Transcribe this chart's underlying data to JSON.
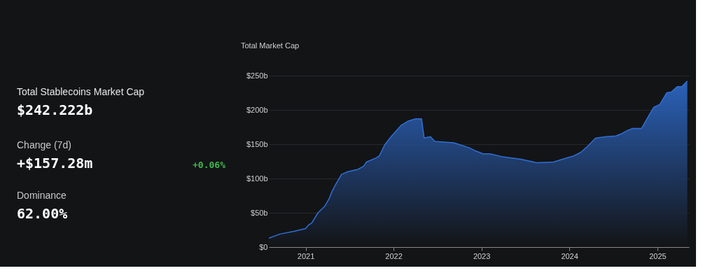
{
  "chart_data": {
    "type": "area",
    "title": "Total Stablecoins Market Cap",
    "annotations": [
      "$242.222b",
      "Change (7d)",
      "+$157.28m",
      "+0.06%",
      "Dominance",
      "62.00%",
      "Total Market Cap"
    ],
    "x": [
      "2020-08-01",
      "2020-09-16",
      "2020-11-13",
      "2021-01-01",
      "2021-01-12",
      "2021-01-26",
      "2021-02-21",
      "2021-03-22",
      "2021-04-09",
      "2021-04-20",
      "2021-05-08",
      "2021-05-30",
      "2021-06-25",
      "2021-08-04",
      "2021-08-30",
      "2021-09-10",
      "2021-10-20",
      "2021-11-03",
      "2021-11-25",
      "2021-12-24",
      "2022-02-03",
      "2022-03-04",
      "2022-04-02",
      "2022-04-27",
      "2022-05-08",
      "2022-06-03",
      "2022-06-21",
      "2022-09-09",
      "2022-10-05",
      "2022-11-10",
      "2022-12-09",
      "2023-01-08",
      "2023-02-06",
      "2023-03-26",
      "2023-06-14",
      "2023-08-19",
      "2023-10-27",
      "2023-12-13",
      "2024-01-19",
      "2024-02-17",
      "2024-03-17",
      "2024-04-19",
      "2024-06-02",
      "2024-07-12",
      "2024-08-03",
      "2024-08-29",
      "2024-09-20",
      "2024-10-27",
      "2024-11-25",
      "2024-12-17",
      "2025-01-11",
      "2025-02-09",
      "2025-02-27",
      "2025-03-25",
      "2025-04-12",
      "2025-05-05"
    ],
    "series": [
      {
        "color": "#2f6fd6",
        "values": [
          13,
          19,
          23,
          27,
          32,
          35,
          50,
          60,
          71,
          81,
          93,
          106,
          110,
          113,
          118,
          124,
          130,
          133,
          149,
          162,
          178,
          184,
          187,
          187,
          159,
          161,
          154,
          152,
          149,
          145,
          140,
          136,
          136,
          132,
          128,
          123,
          124,
          129,
          133,
          138,
          147,
          159,
          161,
          162,
          165,
          170,
          173,
          173,
          191,
          204,
          208,
          225,
          226,
          234,
          234,
          242
        ]
      }
    ],
    "xlim": [
      "2020-08-01",
      "2025-05-12"
    ],
    "ylim": [
      0,
      250
    ],
    "xticks": [
      "2021",
      "2022",
      "2023",
      "2024",
      "2025"
    ],
    "yticks": [
      {
        "value": 0,
        "label": "$0"
      },
      {
        "value": 50,
        "label": "$50b"
      },
      {
        "value": 100,
        "label": "$100b"
      },
      {
        "value": 150,
        "label": "$150b"
      },
      {
        "value": 200,
        "label": "$200b"
      },
      {
        "value": 250,
        "label": "$250b"
      }
    ],
    "grid": "y"
  }
}
